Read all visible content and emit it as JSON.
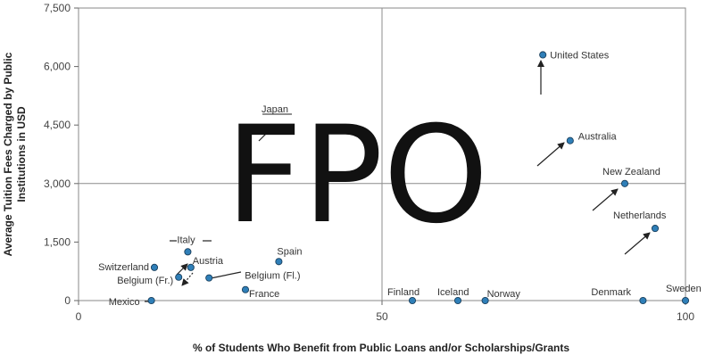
{
  "chart_data": {
    "type": "scatter",
    "title": "",
    "xlabel": "% of Students Who Benefit from Public Loans and/or Scholarships/Grants",
    "ylabel_lines": [
      "Average Tuition Fees Charged by Public",
      "Institutions in USD"
    ],
    "xlim": [
      0,
      100
    ],
    "ylim": [
      0,
      7500
    ],
    "x_ticks": [
      0,
      50,
      100
    ],
    "y_ticks": [
      0,
      1500,
      3000,
      4500,
      6000,
      7500
    ],
    "y_tick_labels": [
      "0",
      "1,500",
      "3,000",
      "4,500",
      "6,000",
      "7,500"
    ],
    "grid": "major lines at 50 and 3,000",
    "marker_color": "#2f7fb8",
    "points": [
      {
        "label": "United States",
        "x": 76.5,
        "y": 6300
      },
      {
        "label": "Australia",
        "x": 81,
        "y": 4100
      },
      {
        "label": "New Zealand",
        "x": 90,
        "y": 3000
      },
      {
        "label": "Netherlands",
        "x": 95,
        "y": 1850
      },
      {
        "label": "Spain",
        "x": 33,
        "y": 1000
      },
      {
        "label": "Italy",
        "x": 18,
        "y": 1250
      },
      {
        "label": "Austria",
        "x": 18.5,
        "y": 850
      },
      {
        "label": "Switzerland",
        "x": 12.5,
        "y": 850
      },
      {
        "label": "Belgium (Fr.)",
        "x": 16.5,
        "y": 600
      },
      {
        "label": "Belgium (Fl.)",
        "x": 21.5,
        "y": 580
      },
      {
        "label": "France",
        "x": 27.5,
        "y": 280
      },
      {
        "label": "Mexico",
        "x": 12,
        "y": 0
      },
      {
        "label": "Finland",
        "x": 55,
        "y": 0
      },
      {
        "label": "Iceland",
        "x": 62.5,
        "y": 0
      },
      {
        "label": "Norway",
        "x": 67,
        "y": 0
      },
      {
        "label": "Denmark",
        "x": 93,
        "y": 0
      },
      {
        "label": "Sweden",
        "x": 100,
        "y": 0
      }
    ],
    "annotations": [
      "Japan"
    ]
  },
  "watermark": "FPO"
}
